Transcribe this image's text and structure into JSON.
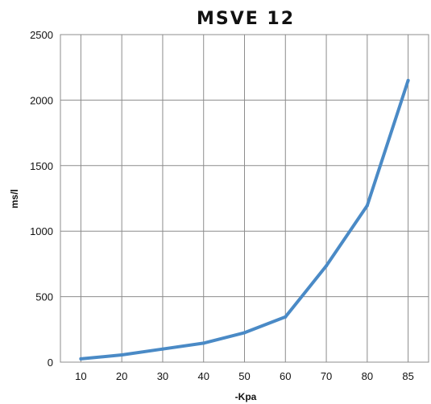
{
  "chart_data": {
    "type": "line",
    "title": "MSVE 12",
    "xlabel": "-Kpa",
    "ylabel": "ms/l",
    "x": [
      "10",
      "20",
      "30",
      "40",
      "50",
      "60",
      "70",
      "80",
      "85"
    ],
    "series": [
      {
        "values": [
          25,
          55,
          100,
          145,
          225,
          345,
          735,
          1195,
          2150
        ]
      }
    ],
    "ylim": [
      0,
      2500
    ],
    "yticks": [
      "0",
      "500",
      "1000",
      "1500",
      "2000",
      "2500"
    ],
    "grid": true,
    "legend": "none",
    "colors": {
      "line": "#4a8ac6",
      "grid": "#8c8c8c",
      "text": "#111111"
    }
  }
}
